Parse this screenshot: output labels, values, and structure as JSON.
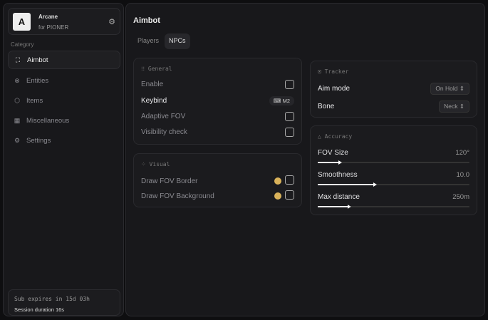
{
  "sidebar": {
    "brand": {
      "logo": "A",
      "name": "Arcane",
      "subtitle": "for PIONER",
      "settings_icon": "gear-icon"
    },
    "category_label": "Category",
    "items": [
      {
        "label": "Aimbot",
        "icon": "crosshair-icon",
        "active": true
      },
      {
        "label": "Entities",
        "icon": "entities-icon",
        "active": false
      },
      {
        "label": "Items",
        "icon": "box-icon",
        "active": false
      },
      {
        "label": "Miscellaneous",
        "icon": "grid-icon",
        "active": false
      },
      {
        "label": "Settings",
        "icon": "gear-icon",
        "active": false
      }
    ],
    "footer": {
      "subscription": "Sub expires in 15d 03h",
      "session": "Session duration 16s"
    }
  },
  "main": {
    "title": "Aimbot",
    "tabs": [
      {
        "label": "Players",
        "active": false
      },
      {
        "label": "NPCs",
        "active": true
      }
    ],
    "general": {
      "title": "General",
      "enable": "Enable",
      "enable_checked": false,
      "keybind": "Keybind",
      "keybind_value": "M2",
      "adaptive_fov": "Adaptive FOV",
      "adaptive_checked": false,
      "visibility_check": "Visibility check",
      "visibility_checked": false
    },
    "visual": {
      "title": "Visual",
      "draw_border": "Draw FOV Border",
      "draw_background": "Draw FOV Background",
      "color": "#d9b25a"
    },
    "tracker": {
      "title": "Tracker",
      "aim_mode": "Aim mode",
      "aim_mode_value": "On Hold",
      "bone": "Bone",
      "bone_value": "Neck"
    },
    "accuracy": {
      "title": "Accuracy",
      "sliders": [
        {
          "label": "FOV Size",
          "value": "120°",
          "fraction": 0.15
        },
        {
          "label": "Smoothness",
          "value": "10.0",
          "fraction": 0.38
        },
        {
          "label": "Max distance",
          "value": "250m",
          "fraction": 0.21
        }
      ]
    }
  }
}
